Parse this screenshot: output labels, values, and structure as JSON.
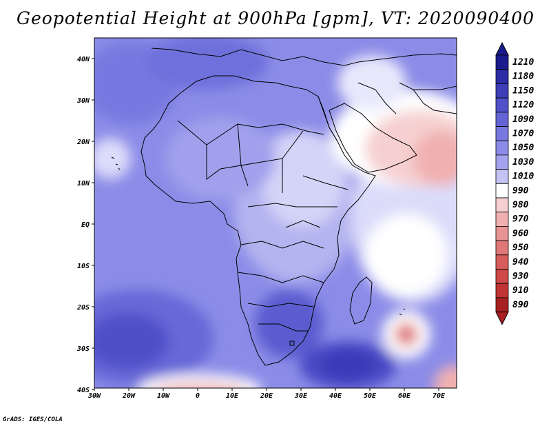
{
  "title": "Geopotential Height at 900hPa [gpm], VT: 2020090400",
  "footer": "GrADS: IGES/COLA",
  "map": {
    "region": "Africa and surrounding oceans",
    "variable": "Geopotential Height",
    "level": "900hPa",
    "units": "gpm",
    "valid_time": "2020090400",
    "lon_ticks": [
      "30W",
      "20W",
      "10W",
      "0",
      "10E",
      "20E",
      "30E",
      "40E",
      "50E",
      "60E",
      "70E"
    ],
    "lat_ticks": [
      "40N",
      "30N",
      "20N",
      "10N",
      "EQ",
      "10S",
      "20S",
      "30S",
      "40S"
    ]
  },
  "colorbar": {
    "labels": [
      "1210",
      "1180",
      "1150",
      "1120",
      "1090",
      "1070",
      "1050",
      "1030",
      "1010",
      "990",
      "980",
      "970",
      "960",
      "950",
      "940",
      "930",
      "910",
      "890"
    ],
    "colors": [
      "#1a1a8c",
      "#2c2ca6",
      "#3e3eb8",
      "#5050c8",
      "#6464d6",
      "#7878e0",
      "#8c8ce8",
      "#a4a4ee",
      "#c4c4f4",
      "#ffffff",
      "#f6d0d0",
      "#f0b0b0",
      "#e89494",
      "#e07878",
      "#d85c5c",
      "#d04848",
      "#c03434",
      "#a82020"
    ]
  }
}
